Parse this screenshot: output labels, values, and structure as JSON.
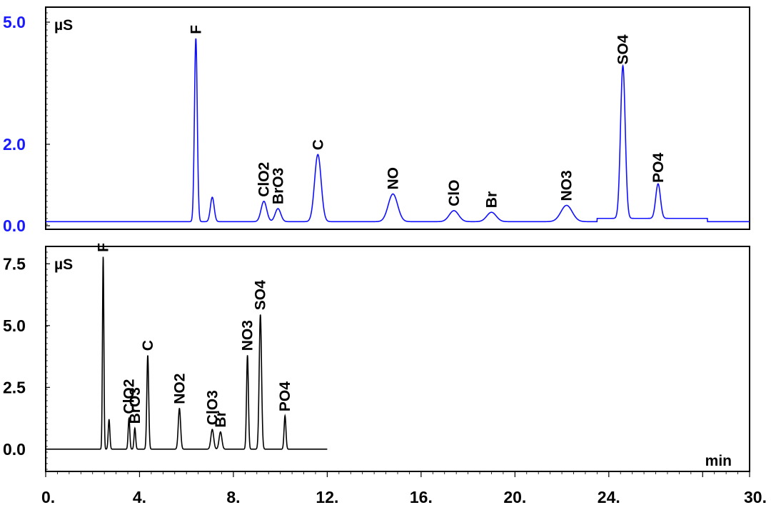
{
  "chart_data": [
    {
      "type": "line",
      "ylabel": "µS",
      "ylim": [
        0,
        5
      ],
      "xlim": [
        0,
        30
      ],
      "y_ticks": [
        {
          "value": 0,
          "label": "0.0"
        },
        {
          "value": 2,
          "label": "2.0"
        },
        {
          "value": 5,
          "label": "5.0"
        }
      ],
      "tick_color": "#1a1aff",
      "series": [
        {
          "color": "#1010ff",
          "baseline": 0.1,
          "peaks": [
            {
              "label": "F",
              "x": 6.4,
              "height": 4.5,
              "width": 0.06
            },
            {
              "label": "",
              "x": 7.1,
              "height": 0.6,
              "width": 0.08
            },
            {
              "label": "ClO2",
              "x": 9.3,
              "height": 0.5,
              "width": 0.12
            },
            {
              "label": "BrO3",
              "x": 9.9,
              "height": 0.32,
              "width": 0.12
            },
            {
              "label": "C",
              "x": 11.6,
              "height": 1.65,
              "width": 0.14
            },
            {
              "label": "NO",
              "x": 14.8,
              "height": 0.68,
              "width": 0.2
            },
            {
              "label": "ClO",
              "x": 17.4,
              "height": 0.27,
              "width": 0.2
            },
            {
              "label": "Br",
              "x": 19.0,
              "height": 0.23,
              "width": 0.2
            },
            {
              "label": "NO3",
              "x": 22.2,
              "height": 0.4,
              "width": 0.24
            },
            {
              "label": "SO4",
              "x": 24.6,
              "height": 3.75,
              "width": 0.1
            },
            {
              "label": "PO4",
              "x": 26.1,
              "height": 0.85,
              "width": 0.1
            }
          ]
        }
      ]
    },
    {
      "type": "line",
      "ylabel": "µS",
      "xlabel": "min",
      "ylim": [
        -0.9,
        8.0
      ],
      "xlim": [
        0,
        30
      ],
      "y_ticks": [
        {
          "value": 0,
          "label": "0.0"
        },
        {
          "value": 2.5,
          "label": "2.5"
        },
        {
          "value": 5,
          "label": "5.0"
        },
        {
          "value": 7.5,
          "label": "7.5"
        }
      ],
      "x_ticks": [
        {
          "value": 0,
          "label": "0."
        },
        {
          "value": 4,
          "label": "4."
        },
        {
          "value": 8,
          "label": "8."
        },
        {
          "value": 12,
          "label": "12."
        },
        {
          "value": 16,
          "label": "16."
        },
        {
          "value": 20,
          "label": "20."
        },
        {
          "value": 24,
          "label": "24."
        },
        {
          "value": 30,
          "label": "30."
        }
      ],
      "tick_color": "#000000",
      "series": [
        {
          "color": "#000000",
          "baseline": 0.0,
          "x_end": 12.0,
          "peaks": [
            {
              "label": "F",
              "x": 2.45,
              "height": 7.8,
              "width": 0.03
            },
            {
              "label": "",
              "x": 2.7,
              "height": 1.2,
              "width": 0.035
            },
            {
              "label": "ClO2",
              "x": 3.55,
              "height": 1.25,
              "width": 0.035
            },
            {
              "label": "BrO3",
              "x": 3.8,
              "height": 0.85,
              "width": 0.035
            },
            {
              "label": "C",
              "x": 4.35,
              "height": 3.8,
              "width": 0.04
            },
            {
              "label": "NO2",
              "x": 5.7,
              "height": 1.65,
              "width": 0.05
            },
            {
              "label": "ClO3",
              "x": 7.1,
              "height": 0.8,
              "width": 0.06
            },
            {
              "label": "Br",
              "x": 7.45,
              "height": 0.7,
              "width": 0.06
            },
            {
              "label": "NO3",
              "x": 8.6,
              "height": 3.8,
              "width": 0.04
            },
            {
              "label": "SO4",
              "x": 9.15,
              "height": 5.45,
              "width": 0.05
            },
            {
              "label": "PO4",
              "x": 10.2,
              "height": 1.35,
              "width": 0.04
            }
          ]
        }
      ]
    }
  ]
}
